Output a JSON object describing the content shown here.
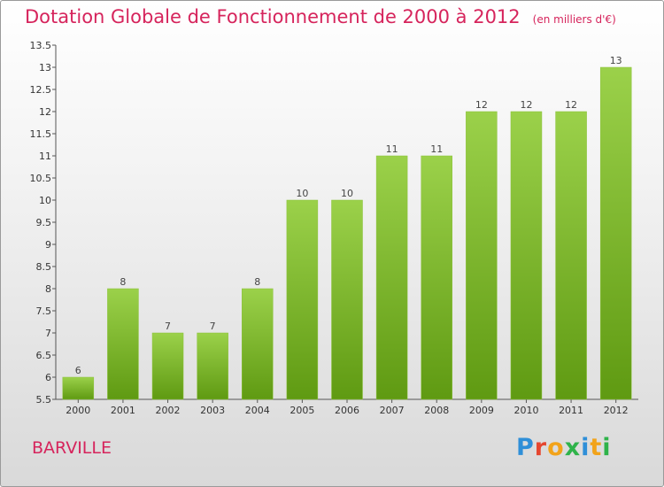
{
  "header": {
    "title": "Dotation Globale de Fonctionnement de 2000 à 2012",
    "subtitle": "(en milliers d'€)"
  },
  "footer": {
    "city": "BARVILLE",
    "brand": "Proxiti"
  },
  "colors": {
    "accent": "#d6245c",
    "bar_light": "#9bd14a",
    "bar_dark": "#5f9a12"
  },
  "chart_data": {
    "type": "bar",
    "categories": [
      "2000",
      "2001",
      "2002",
      "2003",
      "2004",
      "2005",
      "2006",
      "2007",
      "2008",
      "2009",
      "2010",
      "2011",
      "2012"
    ],
    "values": [
      6,
      8,
      7,
      7,
      8,
      10,
      10,
      11,
      11,
      12,
      12,
      12,
      13
    ],
    "data_labels": [
      "6",
      "8",
      "7",
      "7",
      "8",
      "10",
      "10",
      "11",
      "11",
      "12",
      "12",
      "12",
      "13"
    ],
    "title": "Dotation Globale de Fonctionnement de 2000 à 2012",
    "subtitle": "(en milliers d'€)",
    "ylim": [
      5.5,
      13.5
    ],
    "yticks": [
      "5.5",
      "6",
      "6.5",
      "7",
      "7.5",
      "8",
      "8.5",
      "9",
      "9.5",
      "10",
      "10.5",
      "11",
      "11.5",
      "12",
      "12.5",
      "13",
      "13.5"
    ],
    "grid": false,
    "legend": "none"
  }
}
